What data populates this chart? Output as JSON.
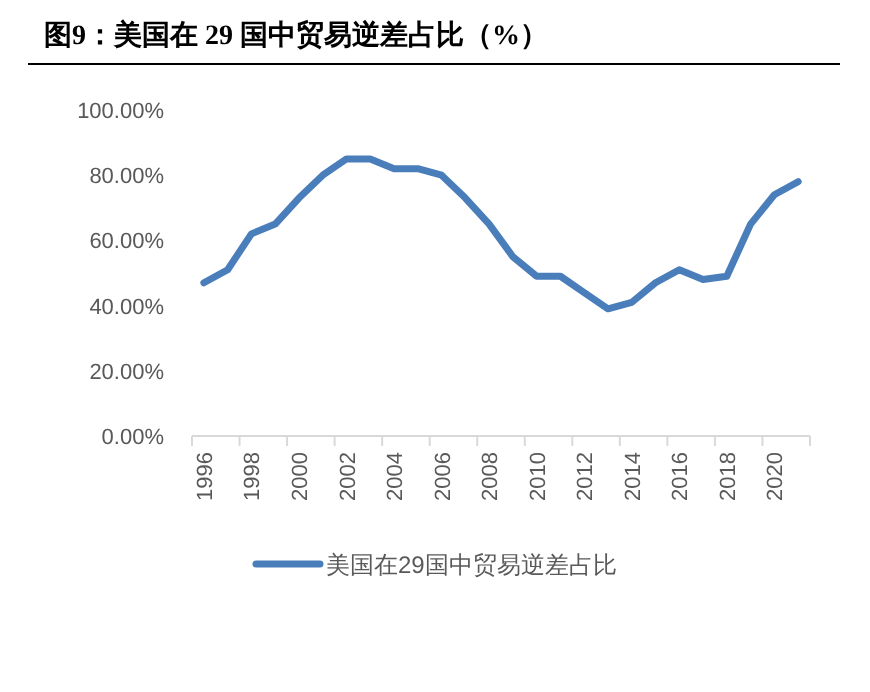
{
  "chart_data": {
    "type": "line",
    "title": "图9：美国在 29 国中贸易逆差占比（%）",
    "categories": [
      "1996",
      null,
      "1998",
      null,
      "2000",
      null,
      "2002",
      null,
      "2004",
      null,
      "2006",
      null,
      "2008",
      null,
      "2010",
      null,
      "2012",
      null,
      "2014",
      null,
      "2016",
      null,
      "2018",
      null,
      "2020",
      null
    ],
    "series": [
      {
        "name": "美国在29国中贸易逆差占比",
        "color": "#4a7ebb",
        "values": [
          47,
          51,
          62,
          65,
          73,
          80,
          85,
          85,
          82,
          82,
          80,
          73,
          65,
          55,
          49,
          49,
          44,
          39,
          41,
          47,
          51,
          48,
          49,
          65,
          74,
          78
        ]
      }
    ],
    "ylim": [
      0,
      100
    ],
    "yticks": [
      {
        "value": 0,
        "label": "0.00%"
      },
      {
        "value": 20,
        "label": "20.00%"
      },
      {
        "value": 40,
        "label": "40.00%"
      },
      {
        "value": 60,
        "label": "60.00%"
      },
      {
        "value": 80,
        "label": "80.00%"
      },
      {
        "value": 100,
        "label": "100.00%"
      }
    ],
    "grid": false,
    "legend": "bottom",
    "marker": "none",
    "line_style": "solid"
  }
}
